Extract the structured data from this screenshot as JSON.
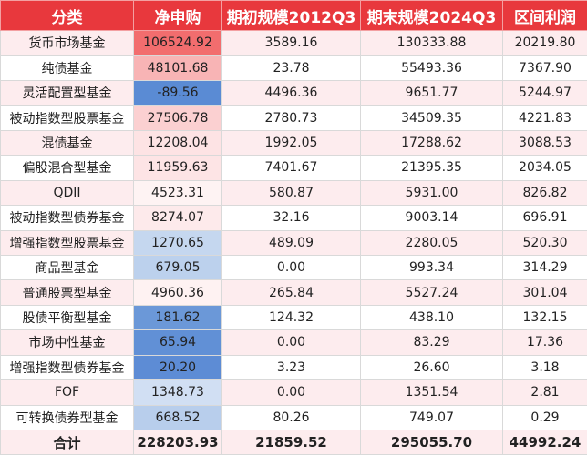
{
  "table": {
    "header": [
      "分类",
      "净申购",
      "期初规模2012Q3",
      "期末规模2024Q3",
      "区间利润"
    ],
    "rows": [
      [
        "货币市场基金",
        "106524.92",
        "3589.16",
        "130333.88",
        "20219.80"
      ],
      [
        "纯债基金",
        "48101.68",
        "23.78",
        "55493.36",
        "7367.90"
      ],
      [
        "灵活配置型基金",
        "-89.56",
        "4496.36",
        "9651.77",
        "5244.97"
      ],
      [
        "被动指数型股票基金",
        "27506.78",
        "2780.73",
        "34509.35",
        "4221.83"
      ],
      [
        "混债基金",
        "12208.04",
        "1992.05",
        "17288.62",
        "3088.53"
      ],
      [
        "偏股混合型基金",
        "11959.63",
        "7401.67",
        "21395.35",
        "2034.05"
      ],
      [
        "QDII",
        "4523.31",
        "580.87",
        "5931.00",
        "826.82"
      ],
      [
        "被动指数型债券基金",
        "8274.07",
        "32.16",
        "9003.14",
        "696.91"
      ],
      [
        "增强指数型股票基金",
        "1270.65",
        "489.09",
        "2280.05",
        "520.30"
      ],
      [
        "商品型基金",
        "679.05",
        "0.00",
        "993.34",
        "314.29"
      ],
      [
        "普通股票型基金",
        "4960.36",
        "265.84",
        "5527.24",
        "301.04"
      ],
      [
        "股债平衡型基金",
        "181.62",
        "124.32",
        "438.10",
        "132.15"
      ],
      [
        "市场中性基金",
        "65.94",
        "0.00",
        "83.29",
        "17.36"
      ],
      [
        "增强指数型债券基金",
        "20.20",
        "3.23",
        "26.60",
        "3.18"
      ],
      [
        "FOF",
        "1348.73",
        "0.00",
        "1351.54",
        "2.81"
      ],
      [
        "可转换债券型基金",
        "668.52",
        "80.26",
        "749.07",
        "0.29"
      ]
    ],
    "total": [
      "合计",
      "228203.93",
      "21859.52",
      "295055.70",
      "44992.24"
    ]
  }
}
